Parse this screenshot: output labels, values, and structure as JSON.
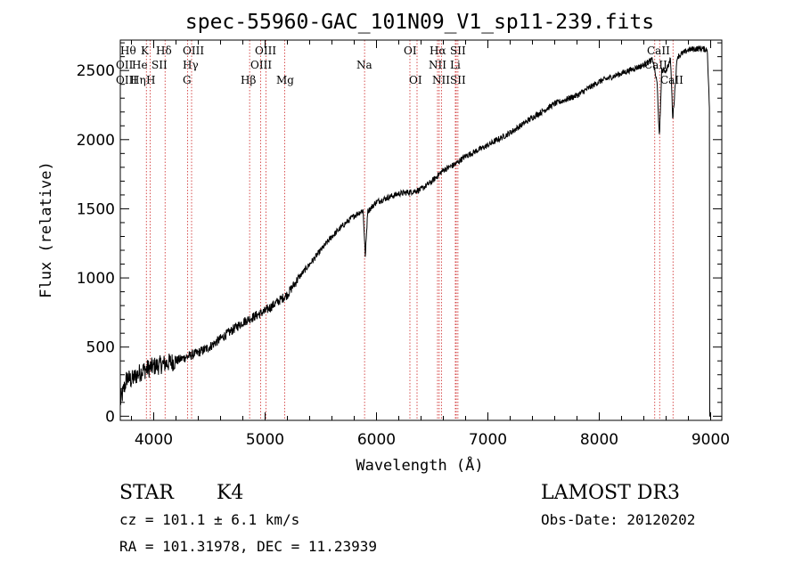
{
  "chart_data": {
    "type": "line",
    "title": "spec-55960-GAC_101N09_V1_sp11-239.fits",
    "xlabel": "Wavelength (Å)",
    "ylabel": "Flux (relative)",
    "xlim": [
      3700,
      9100
    ],
    "ylim": [
      -30,
      2720
    ],
    "xticks": [
      4000,
      5000,
      6000,
      7000,
      8000,
      9000
    ],
    "yticks": [
      0,
      500,
      1000,
      1500,
      2000,
      2500
    ],
    "series": [
      {
        "name": "spectrum",
        "anchors_x": [
          3700,
          3760,
          3800,
          3850,
          3900,
          4000,
          4100,
          4200,
          4300,
          4400,
          4500,
          4600,
          4700,
          4800,
          4900,
          5000,
          5100,
          5200,
          5300,
          5400,
          5500,
          5600,
          5700,
          5800,
          5880,
          5900,
          5920,
          6000,
          6100,
          6200,
          6300,
          6400,
          6500,
          6600,
          6700,
          6800,
          6900,
          7000,
          7200,
          7400,
          7600,
          7800,
          8000,
          8200,
          8400,
          8480,
          8520,
          8540,
          8560,
          8600,
          8640,
          8660,
          8700,
          8800,
          8900,
          8970,
          8990,
          9000
        ],
        "anchors_y": [
          100,
          280,
          260,
          300,
          330,
          360,
          380,
          400,
          430,
          460,
          500,
          560,
          620,
          680,
          720,
          760,
          820,
          880,
          1000,
          1100,
          1200,
          1300,
          1380,
          1450,
          1490,
          1150,
          1480,
          1550,
          1580,
          1610,
          1620,
          1640,
          1700,
          1780,
          1820,
          1880,
          1920,
          1960,
          2050,
          2160,
          2260,
          2320,
          2420,
          2480,
          2540,
          2580,
          2400,
          2000,
          2500,
          2500,
          2580,
          2150,
          2600,
          2650,
          2660,
          2650,
          2200,
          0
        ]
      }
    ],
    "lines": [
      {
        "label": "Hδ",
        "x": 4102
      },
      {
        "label": "K",
        "x": 3934
      },
      {
        "label": "H",
        "x": 3969
      },
      {
        "label": "Hγ",
        "x": 4340
      },
      {
        "label": "G",
        "x": 4305
      },
      {
        "label": "Hβ",
        "x": 4861
      },
      {
        "label": "OIII",
        "x": 4959
      },
      {
        "label": "OIII",
        "x": 5007
      },
      {
        "label": "Mg",
        "x": 5175
      },
      {
        "label": "Na",
        "x": 5893
      },
      {
        "label": "OI",
        "x": 6300
      },
      {
        "label": "OI",
        "x": 6364
      },
      {
        "label": "Hα",
        "x": 6563
      },
      {
        "label": "NII",
        "x": 6548
      },
      {
        "label": "NII",
        "x": 6583
      },
      {
        "label": "SII",
        "x": 6716
      },
      {
        "label": "SII",
        "x": 6731
      },
      {
        "label": "Li",
        "x": 6708
      },
      {
        "label": "CaII",
        "x": 8498
      },
      {
        "label": "CaII",
        "x": 8542
      },
      {
        "label": "CaII",
        "x": 8662
      }
    ]
  },
  "labels": {
    "row1": [
      "Hθ",
      "K",
      "Hδ",
      "OIII",
      "OIII",
      "OI",
      "Hα",
      "SII",
      "CaII"
    ],
    "row2": [
      "OII",
      "He",
      "SII",
      "Hγ",
      "OIII",
      "Na",
      "NII",
      "Li",
      "CaII"
    ],
    "row3": [
      "OIII",
      "Hη",
      "H",
      "G",
      "Hβ",
      "Mg",
      "OI",
      "NII",
      "SII",
      "CaII"
    ]
  },
  "info": {
    "object_class": "STAR",
    "subclass": "K4",
    "survey": "LAMOST DR3",
    "cz": "cz = 101.1 ± 6.1 km/s",
    "obs_date": "Obs-Date: 20120202",
    "coords": "RA = 101.31978, DEC =  11.23939"
  }
}
